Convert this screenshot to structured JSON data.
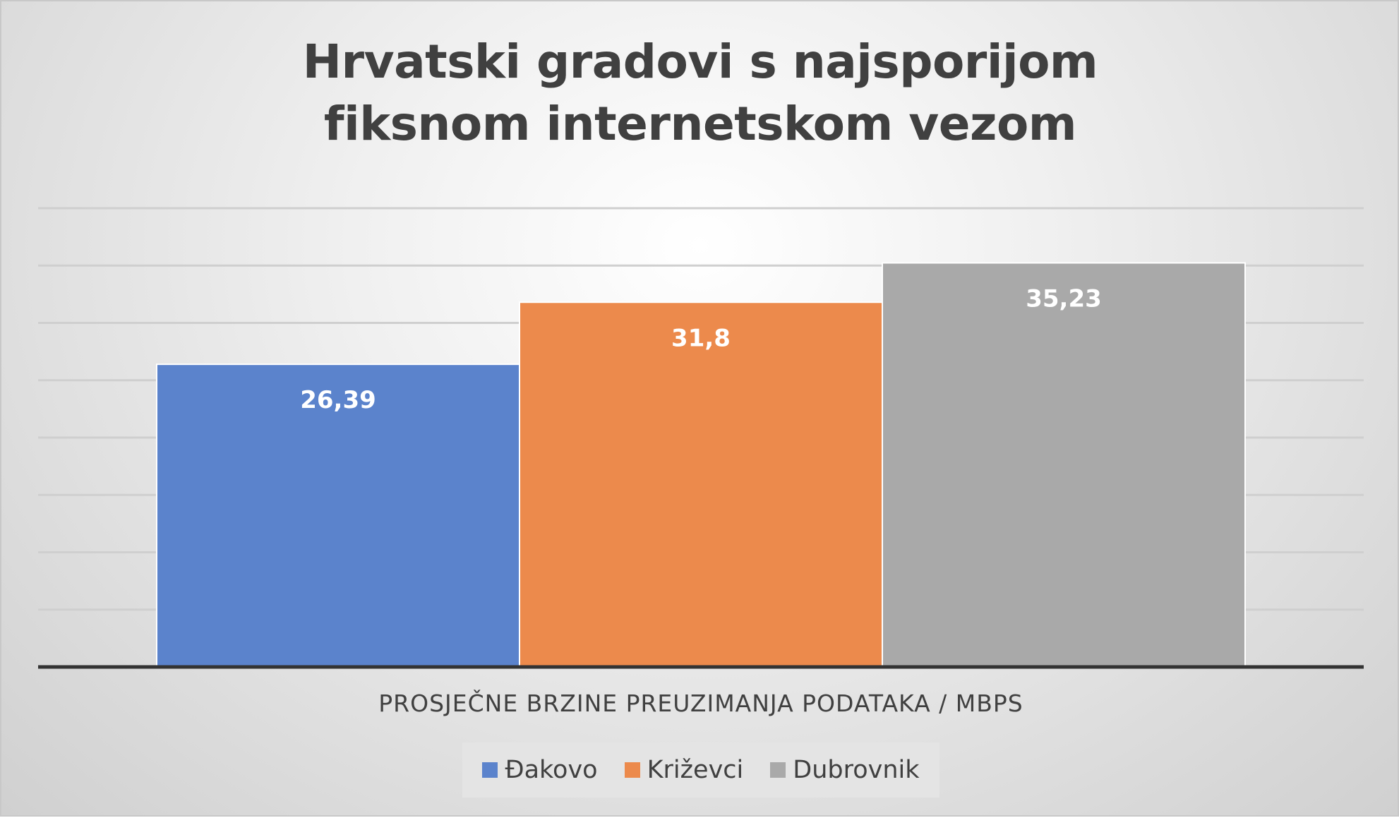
{
  "chart_data": {
    "type": "bar",
    "title": "Hrvatski gradovi s najsporijom fiksnom internetskom vezom",
    "xlabel": "PROSJEČNE BRZINE PREUZIMANJA PODATAKA / MBPS",
    "ylabel": "",
    "categories": [
      "PROSJEČNE BRZINE PREUZIMANJA PODATAKA / MBPS"
    ],
    "series": [
      {
        "name": "Đakovo",
        "values": [
          26.39
        ],
        "label": "26,39",
        "color": "#5b83cc"
      },
      {
        "name": "Križevci",
        "values": [
          31.8
        ],
        "label": "31,8",
        "color": "#ec8a4c"
      },
      {
        "name": "Dubrovnik",
        "values": [
          35.23
        ],
        "label": "35,23",
        "color": "#a9a9a9"
      }
    ],
    "ylim": [
      0,
      40
    ],
    "gridlines": true,
    "legend": "bottom"
  }
}
